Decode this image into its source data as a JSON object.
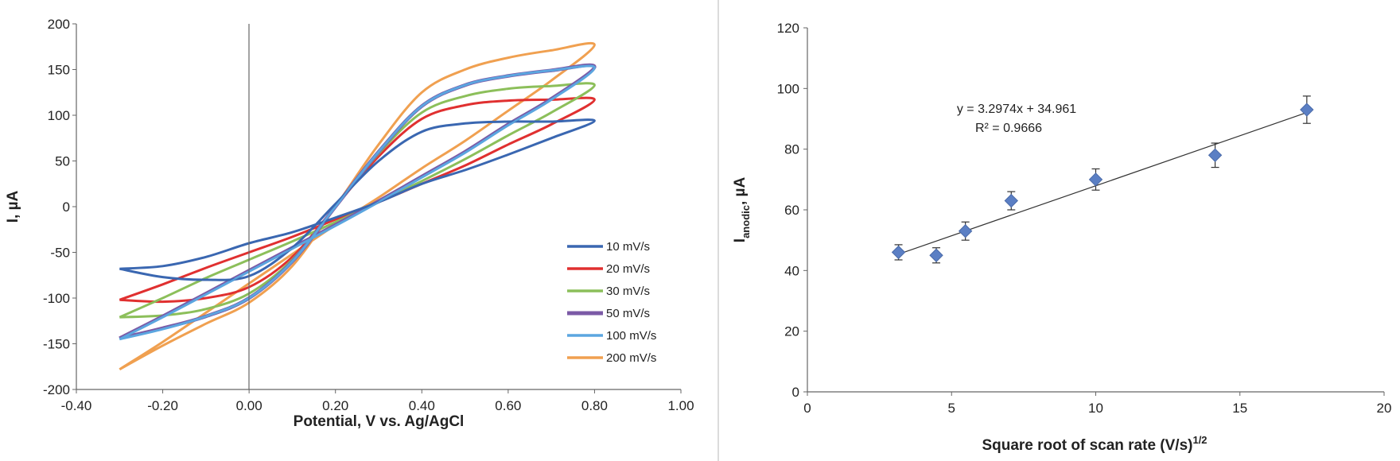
{
  "chart_data": [
    {
      "type": "line",
      "title": "",
      "xlabel": "Potential, V vs. Ag/AgCl",
      "ylabel": "I, µA",
      "xlim": [
        -0.4,
        1.0
      ],
      "ylim": [
        -200,
        200
      ],
      "x_ticks": [
        "-0.40",
        "-0.20",
        "0.00",
        "0.20",
        "0.40",
        "0.60",
        "0.80",
        "1.00"
      ],
      "y_ticks": [
        "200",
        "150",
        "100",
        "50",
        "0",
        "-50",
        "-100",
        "-150",
        "-200"
      ],
      "grid": false,
      "legend_position": "bottom-right",
      "series": [
        {
          "name": "10 mV/s",
          "color": "#3a67b1",
          "x": [
            -0.3,
            -0.2,
            -0.1,
            0.0,
            0.1,
            0.2,
            0.3,
            0.4,
            0.5,
            0.6,
            0.7,
            0.8,
            0.7,
            0.6,
            0.5,
            0.4,
            0.3,
            0.2,
            0.1,
            0.0,
            -0.1,
            -0.2,
            -0.3
          ],
          "y": [
            -68,
            -77,
            -80,
            -76,
            -45,
            3,
            50,
            82,
            91,
            93,
            93,
            94,
            75,
            57,
            40,
            25,
            5,
            -12,
            -28,
            -40,
            -55,
            -65,
            -68
          ]
        },
        {
          "name": "20 mV/s",
          "color": "#e03030",
          "x": [
            -0.3,
            -0.2,
            -0.1,
            0.0,
            0.1,
            0.2,
            0.3,
            0.4,
            0.5,
            0.6,
            0.7,
            0.8,
            0.7,
            0.6,
            0.5,
            0.4,
            0.3,
            0.2,
            0.1,
            0.0,
            -0.1,
            -0.2,
            -0.3
          ],
          "y": [
            -102,
            -104,
            -100,
            -88,
            -55,
            0,
            55,
            96,
            111,
            116,
            117,
            117,
            90,
            68,
            45,
            25,
            5,
            -14,
            -33,
            -50,
            -67,
            -85,
            -102
          ]
        },
        {
          "name": "30 mV/s",
          "color": "#8cbf5a",
          "x": [
            -0.3,
            -0.2,
            -0.1,
            0.0,
            0.1,
            0.2,
            0.3,
            0.4,
            0.5,
            0.6,
            0.7,
            0.8,
            0.7,
            0.6,
            0.5,
            0.4,
            0.3,
            0.2,
            0.1,
            0.0,
            -0.1,
            -0.2,
            -0.3
          ],
          "y": [
            -121,
            -119,
            -112,
            -95,
            -58,
            0,
            58,
            103,
            121,
            129,
            132,
            133,
            103,
            78,
            52,
            28,
            5,
            -17,
            -38,
            -58,
            -78,
            -100,
            -121
          ]
        },
        {
          "name": "50 mV/s",
          "color": "#7b5aa6",
          "x": [
            -0.3,
            -0.2,
            -0.1,
            0.0,
            0.1,
            0.2,
            0.3,
            0.4,
            0.5,
            0.6,
            0.7,
            0.8,
            0.7,
            0.6,
            0.5,
            0.4,
            0.3,
            0.2,
            0.1,
            0.0,
            -0.1,
            -0.2,
            -0.3
          ],
          "y": [
            -144,
            -133,
            -120,
            -100,
            -60,
            0,
            60,
            110,
            133,
            143,
            149,
            153,
            118,
            90,
            60,
            33,
            6,
            -20,
            -45,
            -70,
            -95,
            -120,
            -144
          ]
        },
        {
          "name": "100 mV/s",
          "color": "#5ba6e0",
          "x": [
            -0.3,
            -0.2,
            -0.1,
            0.0,
            0.1,
            0.2,
            0.3,
            0.4,
            0.5,
            0.6,
            0.7,
            0.8,
            0.7,
            0.6,
            0.5,
            0.4,
            0.3,
            0.2,
            0.1,
            0.0,
            -0.1,
            -0.2,
            -0.3
          ],
          "y": [
            -145,
            -134,
            -120,
            -100,
            -60,
            0,
            60,
            110,
            133,
            143,
            149,
            152,
            117,
            89,
            59,
            32,
            5,
            -21,
            -46,
            -71,
            -96,
            -121,
            -145
          ]
        },
        {
          "name": "200 mV/s",
          "color": "#f0a050",
          "x": [
            -0.3,
            -0.2,
            -0.1,
            0.0,
            0.1,
            0.2,
            0.3,
            0.4,
            0.5,
            0.6,
            0.7,
            0.8,
            0.7,
            0.6,
            0.5,
            0.4,
            0.3,
            0.2,
            0.1,
            0.0,
            -0.1,
            -0.2,
            -0.3
          ],
          "y": [
            -178,
            -152,
            -128,
            -105,
            -65,
            0,
            68,
            125,
            150,
            163,
            171,
            177,
            138,
            105,
            72,
            42,
            10,
            -20,
            -52,
            -84,
            -116,
            -148,
            -178
          ]
        }
      ]
    },
    {
      "type": "scatter",
      "title": "",
      "xlabel": "Square root of scan rate (V/s)",
      "xlabel_superscript": "1/2",
      "ylabel": "I",
      "ylabel_subscript": "anodic",
      "ylabel_suffix": ", µA",
      "xlim": [
        0,
        20
      ],
      "ylim": [
        0,
        120
      ],
      "x_ticks": [
        "0",
        "5",
        "10",
        "15",
        "20"
      ],
      "y_ticks": [
        "120",
        "100",
        "80",
        "60",
        "40",
        "20",
        "0"
      ],
      "grid": false,
      "marker_color": "#5b7fc4",
      "points": [
        {
          "x": 3.16,
          "y": 46,
          "err": 2.5
        },
        {
          "x": 4.47,
          "y": 45,
          "err": 2.5
        },
        {
          "x": 5.48,
          "y": 53,
          "err": 3
        },
        {
          "x": 7.07,
          "y": 63,
          "err": 3
        },
        {
          "x": 10.0,
          "y": 70,
          "err": 3.5
        },
        {
          "x": 14.14,
          "y": 78,
          "err": 4
        },
        {
          "x": 17.32,
          "y": 93,
          "err": 4.5
        }
      ],
      "trendline": {
        "slope": 3.2974,
        "intercept": 34.961,
        "x_from": 3.16,
        "x_to": 17.32
      },
      "equation": "y = 3.2974x + 34.961",
      "r_squared": "R² = 0.9666"
    }
  ]
}
